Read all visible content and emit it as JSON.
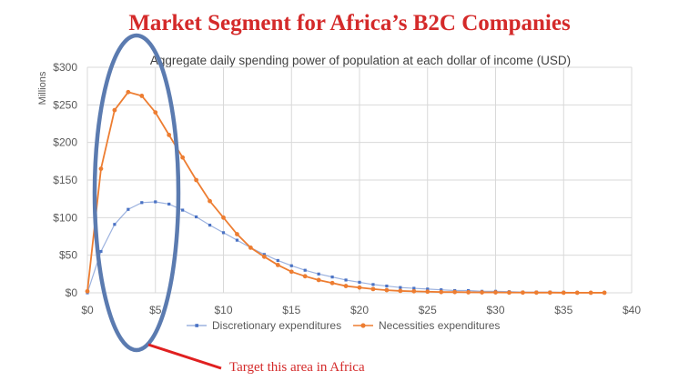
{
  "slide": {
    "title": "Market Segment for Africa’s B2C Companies",
    "annotation": "Target this area in Africa"
  },
  "colors": {
    "title_red": "#d42a2a",
    "discretionary": "#4a72c4",
    "necessities": "#ed7d31",
    "ellipse": "#5b7bb0",
    "arrow": "#e02020",
    "grid": "#d9d9d9",
    "axis_text": "#595959"
  },
  "chart_data": {
    "type": "line",
    "title": "Aggregate daily spending power of population at each dollar of income (USD)",
    "ylabel": "Millions",
    "xlabel": "",
    "xlim": [
      0,
      40
    ],
    "ylim": [
      0,
      300
    ],
    "x_ticks": [
      "$0",
      "$5",
      "$10",
      "$15",
      "$20",
      "$25",
      "$30",
      "$35",
      "$40"
    ],
    "y_ticks": [
      "$0",
      "$50",
      "$100",
      "$150",
      "$200",
      "$250",
      "$300"
    ],
    "grid": true,
    "legend_position": "bottom",
    "x": [
      0,
      1,
      2,
      3,
      4,
      5,
      6,
      7,
      8,
      9,
      10,
      11,
      12,
      13,
      14,
      15,
      16,
      17,
      18,
      19,
      20,
      21,
      22,
      23,
      24,
      25,
      26,
      27,
      28,
      29,
      30,
      31,
      32,
      33,
      34,
      35,
      36,
      37,
      38
    ],
    "series": [
      {
        "name": "Discretionary expenditures",
        "color": "#4a72c4",
        "marker": "square",
        "values": [
          0,
          55,
          91,
          111,
          120,
          121,
          118,
          110,
          101,
          90,
          80,
          70,
          60,
          51,
          43,
          36,
          30,
          25,
          21,
          17,
          14,
          11,
          9,
          7,
          6,
          5,
          4,
          3,
          3,
          2,
          2,
          1.5,
          1,
          1,
          1,
          0.7,
          0.5,
          0.5,
          0.3
        ]
      },
      {
        "name": "Necessities expenditures",
        "color": "#ed7d31",
        "marker": "circle",
        "values": [
          2,
          165,
          243,
          267,
          262,
          240,
          210,
          180,
          150,
          122,
          100,
          78,
          60,
          48,
          37,
          28,
          22,
          17,
          13,
          9,
          7,
          5,
          3.5,
          2.5,
          2,
          1.5,
          1,
          1,
          0.7,
          0.5,
          0.5,
          0.3,
          0.3,
          0.2,
          0.2,
          0.1,
          0.1,
          0.1,
          0.1
        ]
      }
    ]
  }
}
